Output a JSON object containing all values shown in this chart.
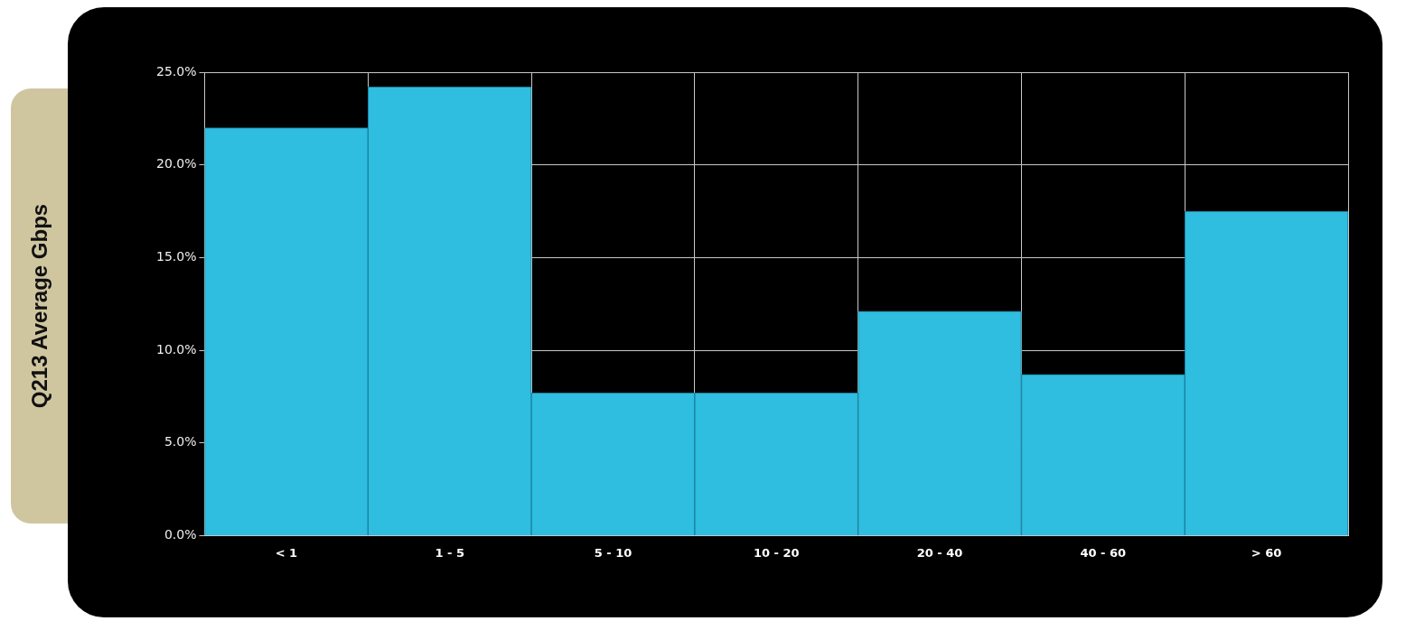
{
  "chart_data": {
    "type": "bar",
    "ylabel": "Q213 Average Gbps",
    "categories": [
      "< 1",
      "1 - 5",
      "5 - 10",
      "10 - 20",
      "20 - 40",
      "40 - 60",
      "> 60"
    ],
    "values": [
      22.0,
      24.2,
      7.7,
      7.7,
      12.1,
      8.7,
      17.5
    ],
    "color": "#2fbde0",
    "ylim": [
      0,
      25
    ],
    "yticks": [
      {
        "value": 0,
        "label": "0.0%"
      },
      {
        "value": 5,
        "label": "5.0%"
      },
      {
        "value": 10,
        "label": "10.0%"
      },
      {
        "value": 15,
        "label": "15.0%"
      },
      {
        "value": 20,
        "label": "20.0%"
      },
      {
        "value": 25,
        "label": "25.0%"
      }
    ],
    "grid": true
  }
}
